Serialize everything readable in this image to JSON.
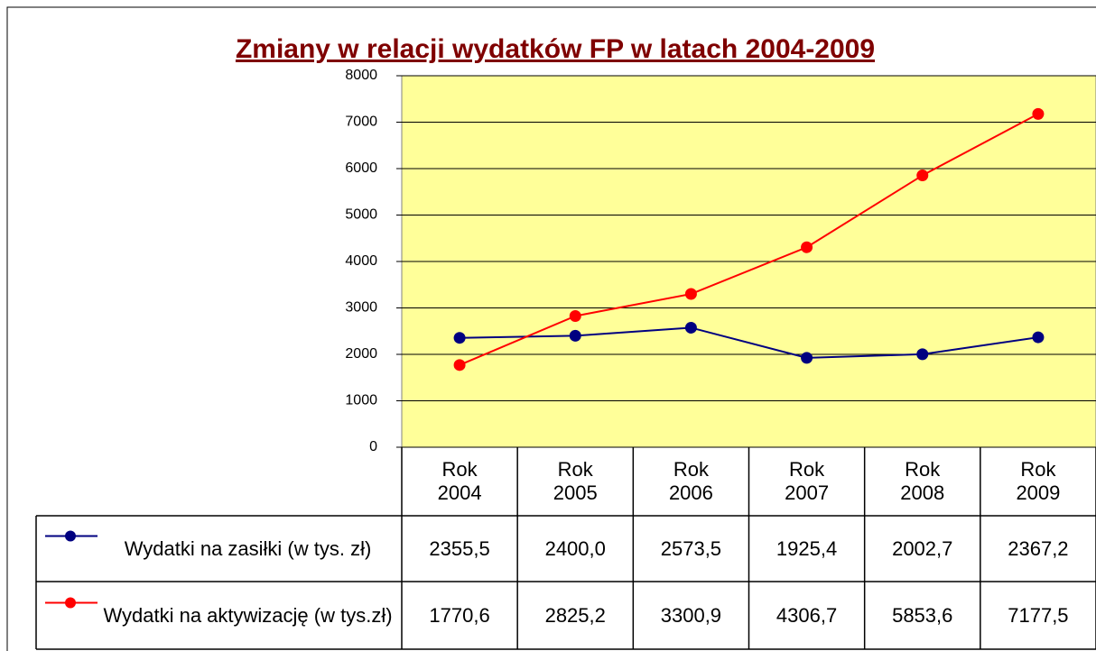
{
  "chart_data": {
    "type": "line",
    "title": "Zmiany w relacji wydatków FP w latach 2004-2009",
    "categories": [
      "Rok 2004",
      "Rok 2005",
      "Rok 2006",
      "Rok 2007",
      "Rok 2008",
      "Rok 2009"
    ],
    "series": [
      {
        "name": "Wydatki na zasiłki (w tys. zł)",
        "color": "#000080",
        "values": [
          2355.5,
          2400.0,
          2573.5,
          1925.4,
          2002.7,
          2367.2
        ],
        "value_labels": [
          "2355,5",
          "2400,0",
          "2573,5",
          "1925,4",
          "2002,7",
          "2367,2"
        ]
      },
      {
        "name": "Wydatki na aktywizację (w tys.zł)",
        "color": "#ff0000",
        "values": [
          1770.6,
          2825.2,
          3300.9,
          4306.7,
          5853.6,
          7177.5
        ],
        "value_labels": [
          "1770,6",
          "2825,2",
          "3300,9",
          "4306,7",
          "5853,6",
          "7177,5"
        ]
      }
    ],
    "ylim": [
      0,
      8000
    ],
    "yticks": [
      0,
      1000,
      2000,
      3000,
      4000,
      5000,
      6000,
      7000,
      8000
    ],
    "grid": true,
    "background": "#ffff99"
  }
}
